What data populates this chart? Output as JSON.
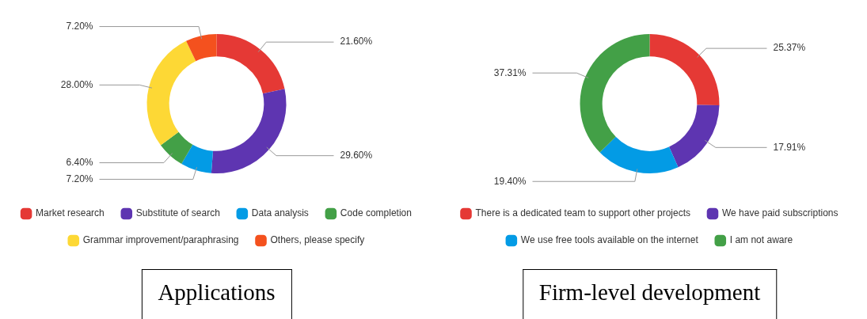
{
  "chart_data": [
    {
      "type": "donut",
      "title": "Applications",
      "categories": [
        "Market research",
        "Substitute of search",
        "Data analysis",
        "Code completion",
        "Grammar improvement/paraphrasing",
        "Others, please specify"
      ],
      "values": [
        21.6,
        29.6,
        7.2,
        6.4,
        28.0,
        7.2
      ],
      "colors": [
        "#e53935",
        "#5e35b1",
        "#039be5",
        "#43a047",
        "#fdd835",
        "#f4511e"
      ],
      "value_labels": [
        "21.60%",
        "29.60%",
        "7.20%",
        "6.40%",
        "28.00%",
        "7.20%"
      ],
      "legend": "bottom"
    },
    {
      "type": "donut",
      "title": "Firm-level development",
      "categories": [
        "There is a dedicated team to support other projects",
        "We have paid subscriptions",
        "We use free tools available on the internet",
        "I am not aware"
      ],
      "values": [
        25.37,
        17.91,
        19.4,
        37.31
      ],
      "colors": [
        "#e53935",
        "#5e35b1",
        "#039be5",
        "#43a047"
      ],
      "value_labels": [
        "25.37%",
        "17.91%",
        "19.40%",
        "37.31%"
      ],
      "legend": "bottom"
    }
  ]
}
